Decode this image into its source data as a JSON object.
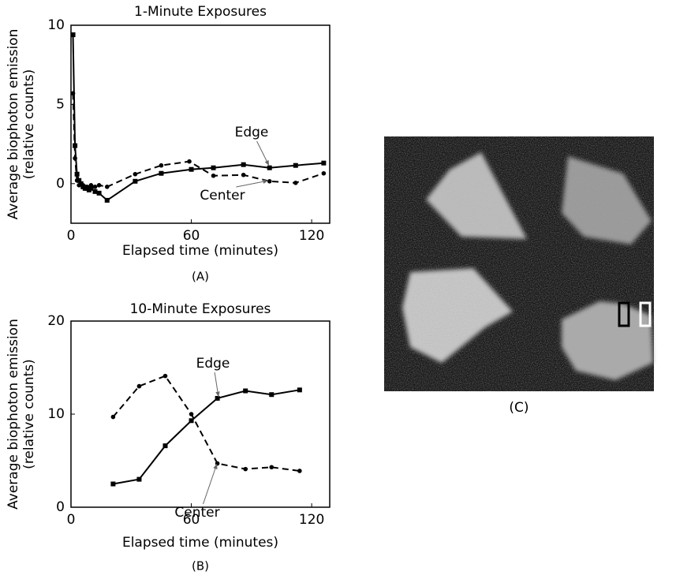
{
  "chart_data": [
    {
      "type": "line",
      "title": "1-Minute Exposures",
      "caption": "(A)",
      "xlabel": "Elapsed time (minutes)",
      "ylabel": [
        "Average biophoton emission",
        "(relative counts)"
      ],
      "xlim": [
        0,
        129
      ],
      "ylim": [
        -2.5,
        10
      ],
      "xticks": [
        0,
        60,
        120
      ],
      "yticks": [
        0,
        5,
        10
      ],
      "annotations": [
        "Edge",
        "Center"
      ],
      "series": [
        {
          "name": "Edge",
          "color": "#000000",
          "line_style": "solid",
          "marker": "square",
          "x": [
            1,
            2,
            3,
            4,
            5,
            6,
            7,
            8,
            9,
            10,
            12,
            14,
            18,
            32,
            45,
            60,
            71,
            86,
            99,
            112,
            126
          ],
          "values": [
            9.4,
            2.4,
            0.6,
            0.2,
            0.0,
            -0.2,
            -0.3,
            -0.3,
            -0.4,
            -0.3,
            -0.5,
            -0.6,
            -1.05,
            0.15,
            0.65,
            0.9,
            1.0,
            1.2,
            1.0,
            1.15,
            1.3
          ]
        },
        {
          "name": "Center",
          "color": "#000000",
          "line_style": "dashed",
          "marker": "circle",
          "x": [
            1,
            2,
            3,
            4,
            5,
            6,
            7,
            8,
            10,
            12,
            14,
            18,
            32,
            45,
            59,
            71,
            86,
            99,
            112,
            126
          ],
          "values": [
            5.7,
            1.6,
            0.2,
            -0.1,
            0.0,
            -0.1,
            -0.2,
            -0.2,
            -0.1,
            -0.2,
            -0.1,
            -0.2,
            0.6,
            1.15,
            1.4,
            0.5,
            0.55,
            0.15,
            0.05,
            0.65
          ]
        }
      ]
    },
    {
      "type": "line",
      "title": "10-Minute Exposures",
      "caption": "(B)",
      "xlabel": "Elapsed time (minutes)",
      "ylabel": [
        "Average biophoton emission",
        "(relative counts)"
      ],
      "xlim": [
        0,
        129
      ],
      "ylim": [
        0,
        20
      ],
      "xticks": [
        0,
        60,
        120
      ],
      "yticks": [
        0,
        10,
        20
      ],
      "annotations": [
        "Edge",
        "Center"
      ],
      "series": [
        {
          "name": "Edge",
          "color": "#000000",
          "line_style": "solid",
          "marker": "square",
          "x": [
            21,
            34,
            47,
            60,
            73,
            87,
            100,
            114
          ],
          "values": [
            2.5,
            3.0,
            6.6,
            9.3,
            11.7,
            12.5,
            12.1,
            12.6
          ]
        },
        {
          "name": "Center",
          "color": "#000000",
          "line_style": "dashed",
          "marker": "circle",
          "x": [
            21,
            34,
            47,
            60,
            73,
            87,
            100,
            114
          ],
          "values": [
            9.7,
            13.0,
            14.1,
            10.0,
            4.7,
            4.1,
            4.3,
            3.9
          ]
        }
      ]
    }
  ],
  "image_caption": "(C)"
}
